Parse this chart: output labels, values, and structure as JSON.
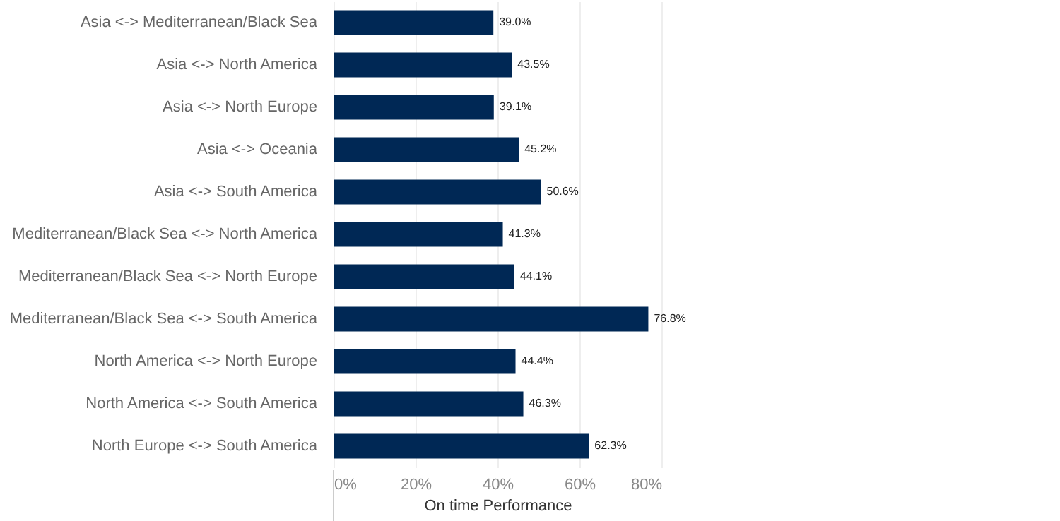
{
  "chart_data": {
    "type": "bar",
    "orientation": "horizontal",
    "xlabel": "On time Performance",
    "categories": [
      "Asia <-> Mediterranean/Black Sea",
      "Asia <-> North America",
      "Asia <-> North Europe",
      "Asia <-> Oceania",
      "Asia <-> South America",
      "Mediterranean/Black Sea <-> North America",
      "Mediterranean/Black Sea <-> North Europe",
      "Mediterranean/Black Sea <-> South America",
      "North America <-> North Europe",
      "North America <-> South America",
      "North Europe <-> South America"
    ],
    "values": [
      39.0,
      43.5,
      39.1,
      45.2,
      50.6,
      41.3,
      44.1,
      76.8,
      44.4,
      46.3,
      62.3
    ],
    "value_labels": [
      "39.0%",
      "43.5%",
      "39.1%",
      "45.2%",
      "50.6%",
      "41.3%",
      "44.1%",
      "76.8%",
      "44.4%",
      "46.3%",
      "62.3%"
    ],
    "color": "#002855",
    "xlim": [
      0,
      80
    ],
    "xticks": [
      {
        "value": 0,
        "label": "0%"
      },
      {
        "value": 20,
        "label": "20%"
      },
      {
        "value": 40,
        "label": "40%"
      },
      {
        "value": 60,
        "label": "60%"
      },
      {
        "value": 80,
        "label": "80%"
      }
    ],
    "grid": "x"
  }
}
